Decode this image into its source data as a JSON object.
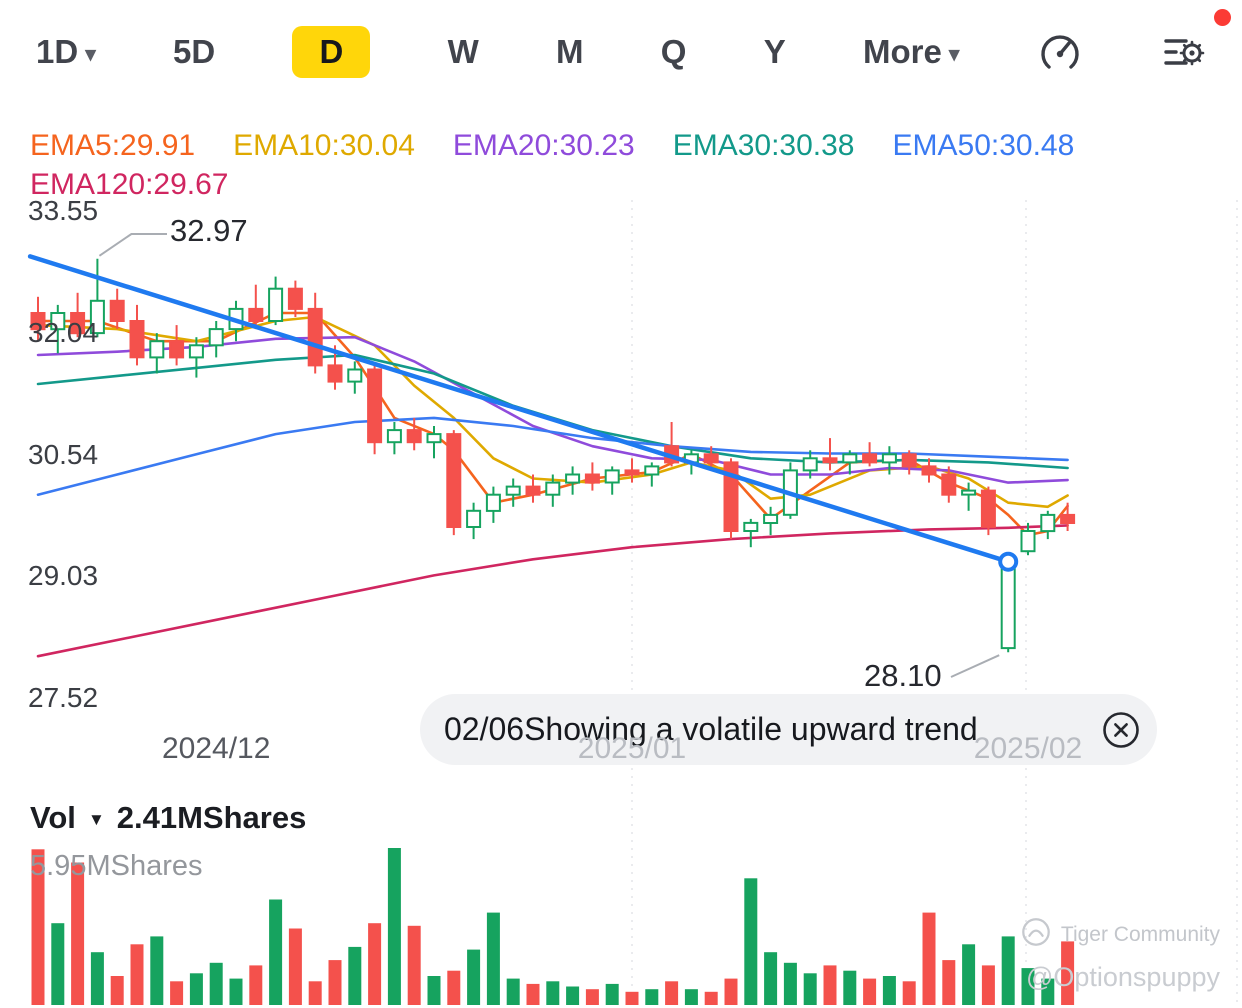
{
  "toolbar": {
    "periods": [
      {
        "label": "1D",
        "has_caret": true
      },
      {
        "label": "5D"
      },
      {
        "label": "D",
        "active": true
      },
      {
        "label": "W"
      },
      {
        "label": "M"
      },
      {
        "label": "Q"
      },
      {
        "label": "Y"
      },
      {
        "label": "More",
        "has_caret": true
      }
    ],
    "notification_dot_color": "#fb3b35",
    "active_highlight_color": "#ffd60a"
  },
  "legend": {
    "items": [
      {
        "text": "EMA5:29.91",
        "color": "#f5641e"
      },
      {
        "text": "EMA10:30.04",
        "color": "#dfa900"
      },
      {
        "text": "EMA20:30.23",
        "color": "#8f4bdb"
      },
      {
        "text": "EMA30:30.38",
        "color": "#13998a"
      },
      {
        "text": "EMA50:30.48",
        "color": "#3a7af2"
      },
      {
        "text": "EMA120:29.67",
        "color": "#d02660"
      }
    ]
  },
  "tooltip": {
    "text": "02/06Showing a volatile upward trend"
  },
  "volume_header": {
    "label": "Vol",
    "value": "2.41MShares",
    "scale_max_label": "5.95MShares"
  },
  "watermark": {
    "community": "Tiger Community",
    "user": "@Optionspuppy"
  },
  "chart_data": {
    "type": "candlestick",
    "ylim": [
      27.52,
      33.55
    ],
    "y_axis_labels": [
      "33.55",
      "32.04",
      "30.54",
      "29.03",
      "27.52"
    ],
    "x_axis_labels": [
      {
        "text": "2024/12",
        "index": 9,
        "color": "#55585f"
      },
      {
        "text": "2025/01",
        "index": 30,
        "color": "#b9bcc2"
      },
      {
        "text": "2025/02",
        "index": 50,
        "color": "#b9bcc2"
      }
    ],
    "grid_indices": [
      30,
      49.9
    ],
    "colors": {
      "up": "#16a35f",
      "down": "#f4514c"
    },
    "volume_max": 5.95,
    "volume_unit": "MShares",
    "candles": [
      [
        32.3,
        32.5,
        31.95,
        32.1,
        5.9
      ],
      [
        32.1,
        32.4,
        31.8,
        32.3,
        3.1
      ],
      [
        32.3,
        32.55,
        32.0,
        32.05,
        5.4
      ],
      [
        32.05,
        32.97,
        32.0,
        32.45,
        2.0
      ],
      [
        32.45,
        32.6,
        32.1,
        32.2,
        1.1
      ],
      [
        32.2,
        32.4,
        31.65,
        31.75,
        2.3
      ],
      [
        31.75,
        32.05,
        31.55,
        31.95,
        2.6
      ],
      [
        31.95,
        32.15,
        31.65,
        31.75,
        0.9
      ],
      [
        31.75,
        32.0,
        31.5,
        31.9,
        1.2
      ],
      [
        31.9,
        32.2,
        31.75,
        32.1,
        1.6
      ],
      [
        32.1,
        32.45,
        31.95,
        32.35,
        1.0
      ],
      [
        32.35,
        32.65,
        32.1,
        32.2,
        1.5
      ],
      [
        32.2,
        32.75,
        32.15,
        32.6,
        4.0
      ],
      [
        32.6,
        32.7,
        32.25,
        32.35,
        2.9
      ],
      [
        32.35,
        32.55,
        31.55,
        31.65,
        0.9
      ],
      [
        31.65,
        31.9,
        31.35,
        31.45,
        1.7
      ],
      [
        31.45,
        31.7,
        31.3,
        31.6,
        2.2
      ],
      [
        31.6,
        31.65,
        30.55,
        30.7,
        3.1
      ],
      [
        30.7,
        30.95,
        30.55,
        30.85,
        5.95
      ],
      [
        30.85,
        31.0,
        30.6,
        30.7,
        3.0
      ],
      [
        30.7,
        30.9,
        30.5,
        30.8,
        1.1
      ],
      [
        30.8,
        30.85,
        29.55,
        29.65,
        1.3
      ],
      [
        29.65,
        29.95,
        29.5,
        29.85,
        2.1
      ],
      [
        29.85,
        30.15,
        29.7,
        30.05,
        3.5
      ],
      [
        30.05,
        30.25,
        29.9,
        30.15,
        1.0
      ],
      [
        30.15,
        30.3,
        29.95,
        30.05,
        0.8
      ],
      [
        30.05,
        30.3,
        29.9,
        30.2,
        0.9
      ],
      [
        30.2,
        30.4,
        30.05,
        30.3,
        0.7
      ],
      [
        30.3,
        30.45,
        30.1,
        30.2,
        0.6
      ],
      [
        30.2,
        30.4,
        30.05,
        30.35,
        0.8
      ],
      [
        30.35,
        30.5,
        30.2,
        30.3,
        0.5
      ],
      [
        30.3,
        30.45,
        30.15,
        30.4,
        0.6
      ],
      [
        30.65,
        30.95,
        30.4,
        30.45,
        0.9
      ],
      [
        30.45,
        30.6,
        30.3,
        30.55,
        0.6
      ],
      [
        30.55,
        30.65,
        30.35,
        30.45,
        0.5
      ],
      [
        30.45,
        30.5,
        29.5,
        29.6,
        1.0
      ],
      [
        29.6,
        29.75,
        29.4,
        29.7,
        4.8
      ],
      [
        29.7,
        29.9,
        29.55,
        29.8,
        2.0
      ],
      [
        29.8,
        30.45,
        29.75,
        30.35,
        1.6
      ],
      [
        30.35,
        30.6,
        30.25,
        30.5,
        1.2
      ],
      [
        30.5,
        30.75,
        30.35,
        30.45,
        1.5
      ],
      [
        30.45,
        30.6,
        30.3,
        30.55,
        1.3
      ],
      [
        30.55,
        30.7,
        30.4,
        30.45,
        1.0
      ],
      [
        30.45,
        30.65,
        30.3,
        30.55,
        1.1
      ],
      [
        30.55,
        30.6,
        30.3,
        30.4,
        0.9
      ],
      [
        30.4,
        30.5,
        30.2,
        30.3,
        3.5
      ],
      [
        30.3,
        30.4,
        29.95,
        30.05,
        1.7
      ],
      [
        30.05,
        30.2,
        29.85,
        30.1,
        2.3
      ],
      [
        30.1,
        30.15,
        29.55,
        29.65,
        1.5
      ],
      [
        28.15,
        29.25,
        28.1,
        29.22,
        2.6
      ],
      [
        29.35,
        29.7,
        29.3,
        29.6,
        1.4
      ],
      [
        29.6,
        29.85,
        29.5,
        29.8,
        1.0
      ],
      [
        29.8,
        29.95,
        29.6,
        29.7,
        2.41
      ]
    ],
    "ema_lines": [
      {
        "name": "EMA5",
        "color": "#f5641e",
        "points": [
          [
            0,
            32.2
          ],
          [
            3,
            32.2
          ],
          [
            6,
            31.95
          ],
          [
            9,
            31.95
          ],
          [
            12,
            32.3
          ],
          [
            14,
            32.3
          ],
          [
            16,
            31.75
          ],
          [
            18,
            31.0
          ],
          [
            20,
            30.8
          ],
          [
            21,
            30.6
          ],
          [
            23,
            29.95
          ],
          [
            25,
            30.05
          ],
          [
            28,
            30.25
          ],
          [
            31,
            30.33
          ],
          [
            33,
            30.55
          ],
          [
            35,
            30.3
          ],
          [
            37,
            29.75
          ],
          [
            39,
            30.1
          ],
          [
            41,
            30.45
          ],
          [
            44,
            30.48
          ],
          [
            46,
            30.2
          ],
          [
            48,
            30.0
          ],
          [
            49,
            29.8
          ],
          [
            50,
            29.55
          ],
          [
            51,
            29.6
          ],
          [
            52,
            29.91
          ]
        ]
      },
      {
        "name": "EMA10",
        "color": "#dfa900",
        "points": [
          [
            0,
            32.15
          ],
          [
            4,
            32.1
          ],
          [
            8,
            31.95
          ],
          [
            12,
            32.2
          ],
          [
            14,
            32.25
          ],
          [
            17,
            31.9
          ],
          [
            19,
            31.4
          ],
          [
            21,
            31.0
          ],
          [
            23,
            30.5
          ],
          [
            25,
            30.25
          ],
          [
            28,
            30.2
          ],
          [
            31,
            30.3
          ],
          [
            33,
            30.45
          ],
          [
            35,
            30.35
          ],
          [
            37,
            30.0
          ],
          [
            39,
            30.05
          ],
          [
            42,
            30.35
          ],
          [
            45,
            30.4
          ],
          [
            47,
            30.25
          ],
          [
            49,
            29.95
          ],
          [
            51,
            29.9
          ],
          [
            52,
            30.04
          ]
        ]
      },
      {
        "name": "EMA20",
        "color": "#8f4bdb",
        "points": [
          [
            0,
            31.78
          ],
          [
            4,
            31.82
          ],
          [
            8,
            31.88
          ],
          [
            12,
            31.98
          ],
          [
            16,
            32.0
          ],
          [
            19,
            31.7
          ],
          [
            22,
            31.3
          ],
          [
            25,
            30.9
          ],
          [
            28,
            30.65
          ],
          [
            31,
            30.5
          ],
          [
            34,
            30.48
          ],
          [
            37,
            30.3
          ],
          [
            40,
            30.3
          ],
          [
            43,
            30.38
          ],
          [
            46,
            30.35
          ],
          [
            49,
            30.2
          ],
          [
            52,
            30.23
          ]
        ]
      },
      {
        "name": "EMA30",
        "color": "#13998a",
        "points": [
          [
            0,
            31.42
          ],
          [
            4,
            31.52
          ],
          [
            8,
            31.62
          ],
          [
            12,
            31.72
          ],
          [
            16,
            31.78
          ],
          [
            20,
            31.55
          ],
          [
            24,
            31.15
          ],
          [
            28,
            30.85
          ],
          [
            32,
            30.65
          ],
          [
            36,
            30.5
          ],
          [
            40,
            30.45
          ],
          [
            44,
            30.48
          ],
          [
            48,
            30.45
          ],
          [
            52,
            30.38
          ]
        ]
      },
      {
        "name": "EMA50",
        "color": "#3a7af2",
        "points": [
          [
            0,
            30.05
          ],
          [
            4,
            30.3
          ],
          [
            8,
            30.55
          ],
          [
            12,
            30.8
          ],
          [
            16,
            30.95
          ],
          [
            20,
            31.0
          ],
          [
            24,
            30.9
          ],
          [
            28,
            30.75
          ],
          [
            32,
            30.65
          ],
          [
            36,
            30.58
          ],
          [
            40,
            30.56
          ],
          [
            44,
            30.56
          ],
          [
            48,
            30.52
          ],
          [
            52,
            30.48
          ]
        ]
      },
      {
        "name": "EMA120",
        "color": "#d02660",
        "points": [
          [
            0,
            28.05
          ],
          [
            5,
            28.3
          ],
          [
            10,
            28.55
          ],
          [
            15,
            28.8
          ],
          [
            20,
            29.05
          ],
          [
            25,
            29.25
          ],
          [
            30,
            29.4
          ],
          [
            35,
            29.5
          ],
          [
            40,
            29.57
          ],
          [
            45,
            29.62
          ],
          [
            49,
            29.64
          ],
          [
            52,
            29.67
          ]
        ]
      }
    ],
    "trendline": {
      "color": "#1f7af0",
      "from": [
        -0.4,
        33.0
      ],
      "to": [
        49,
        29.22
      ],
      "marker": "circle"
    },
    "annotations": [
      {
        "text": "32.97",
        "candle_index": 3,
        "price": 32.97,
        "side": "high"
      },
      {
        "text": "28.10",
        "candle_index": 49,
        "price": 28.1,
        "side": "low"
      }
    ]
  }
}
